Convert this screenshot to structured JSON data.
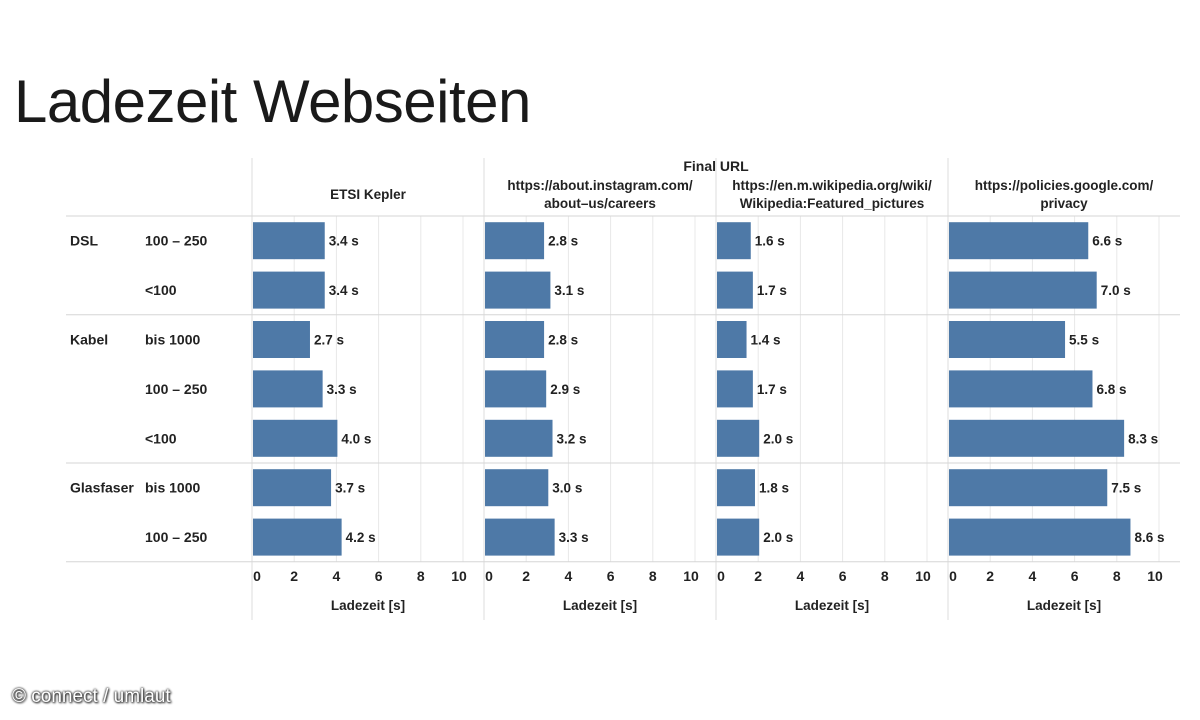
{
  "title": "Ladezeit Webseiten",
  "credit": "© connect / umlaut",
  "chart_data": {
    "type": "bar",
    "orientation": "horizontal",
    "column_header": "Final URL",
    "panels": [
      {
        "name_lines": [
          "ETSI Kepler"
        ]
      },
      {
        "name_lines": [
          "https://about.instagram.com/",
          "about–us/careers"
        ]
      },
      {
        "name_lines": [
          "https://en.m.wikipedia.org/wiki/",
          "Wikipedia:Featured_pictures"
        ]
      },
      {
        "name_lines": [
          "https://policies.google.com/",
          "privacy"
        ]
      }
    ],
    "groups": [
      {
        "name": "DSL",
        "rows": [
          "100 – 250",
          "<100"
        ]
      },
      {
        "name": "Kabel",
        "rows": [
          "bis 1000",
          "100 – 250",
          "<100"
        ]
      },
      {
        "name": "Glasfaser",
        "rows": [
          "bis 1000",
          "100 – 250"
        ]
      }
    ],
    "values": [
      [
        3.4,
        2.8,
        1.6,
        6.6
      ],
      [
        3.4,
        3.1,
        1.7,
        7.0
      ],
      [
        2.7,
        2.8,
        1.4,
        5.5
      ],
      [
        3.3,
        2.9,
        1.7,
        6.8
      ],
      [
        4.0,
        3.2,
        2.0,
        8.3
      ],
      [
        3.7,
        3.0,
        1.8,
        7.5
      ],
      [
        4.2,
        3.3,
        2.0,
        8.6
      ]
    ],
    "value_suffix": " s",
    "xlabel": "Ladezeit [s]",
    "xlim": [
      0,
      10
    ],
    "xticks": [
      0,
      2,
      4,
      6,
      8,
      10
    ],
    "grid": true,
    "bar_color": "#4e79a7"
  }
}
